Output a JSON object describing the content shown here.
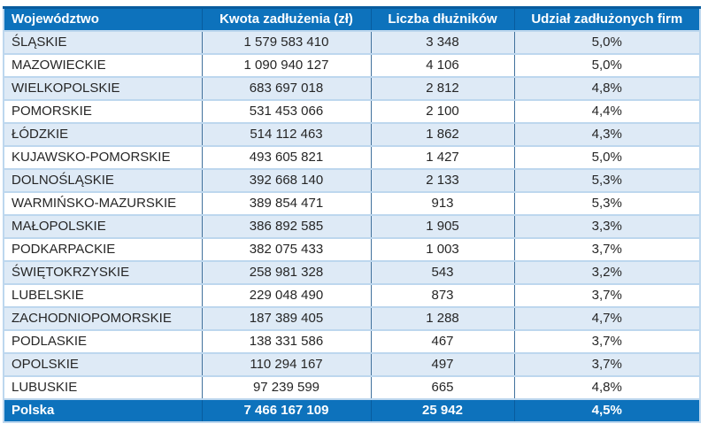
{
  "colors": {
    "header-bg": "#0d72bc",
    "header-top": "#085c9e",
    "stripe-bg": "#deeaf6",
    "row-bg": "#ffffff",
    "border-light": "#bdd7ee",
    "border-dark": "#41719c",
    "text-dark": "#262626",
    "text-light": "#ffffff"
  },
  "table": {
    "columns": [
      {
        "label": "Województwo"
      },
      {
        "label": "Kwota zadłużenia (zł)"
      },
      {
        "label": "Liczba dłużników"
      },
      {
        "label": "Udział zadłużonych firm"
      }
    ],
    "rows": [
      [
        "ŚLĄSKIE",
        "1 579 583 410",
        "3 348",
        "5,0%"
      ],
      [
        "MAZOWIECKIE",
        "1 090 940 127",
        "4 106",
        "5,0%"
      ],
      [
        "WIELKOPOLSKIE",
        "683 697 018",
        "2 812",
        "4,8%"
      ],
      [
        "POMORSKIE",
        "531 453 066",
        "2 100",
        "4,4%"
      ],
      [
        "ŁÓDZKIE",
        "514 112 463",
        "1 862",
        "4,3%"
      ],
      [
        "KUJAWSKO-POMORSKIE",
        "493 605 821",
        "1 427",
        "5,0%"
      ],
      [
        "DOLNOŚLĄSKIE",
        "392 668 140",
        "2 133",
        "5,3%"
      ],
      [
        "WARMIŃSKO-MAZURSKIE",
        "389 854 471",
        "913",
        "5,3%"
      ],
      [
        "MAŁOPOLSKIE",
        "386 892 585",
        "1 905",
        "3,3%"
      ],
      [
        "PODKARPACKIE",
        "382 075 433",
        "1 003",
        "3,7%"
      ],
      [
        "ŚWIĘTOKRZYSKIE",
        "258 981 328",
        "543",
        "3,2%"
      ],
      [
        "LUBELSKIE",
        "229 048 490",
        "873",
        "3,7%"
      ],
      [
        "ZACHODNIOPOMORSKIE",
        "187 389 405",
        "1 288",
        "4,7%"
      ],
      [
        "PODLASKIE",
        "138 331 586",
        "467",
        "3,7%"
      ],
      [
        "OPOLSKIE",
        "110 294 167",
        "497",
        "3,7%"
      ],
      [
        "LUBUSKIE",
        "97 239 599",
        "665",
        "4,8%"
      ]
    ],
    "footer": {
      "label": "Polska",
      "values": [
        "7 466 167 109",
        "25 942",
        "4,5%"
      ]
    }
  },
  "chart_data": {
    "type": "table",
    "title": "",
    "columns": [
      "Województwo",
      "Kwota zadłużenia (zł)",
      "Liczba dłużników",
      "Udział zadłużonych firm"
    ],
    "rows": [
      {
        "wojewodztwo": "ŚLĄSKIE",
        "kwota_zadluzenia_zl": 1579583410,
        "liczba_dluznikow": 3348,
        "udzial_zadluzonych_firm_pct": 5.0
      },
      {
        "wojewodztwo": "MAZOWIECKIE",
        "kwota_zadluzenia_zl": 1090940127,
        "liczba_dluznikow": 4106,
        "udzial_zadluzonych_firm_pct": 5.0
      },
      {
        "wojewodztwo": "WIELKOPOLSKIE",
        "kwota_zadluzenia_zl": 683697018,
        "liczba_dluznikow": 2812,
        "udzial_zadluzonych_firm_pct": 4.8
      },
      {
        "wojewodztwo": "POMORSKIE",
        "kwota_zadluzenia_zl": 531453066,
        "liczba_dluznikow": 2100,
        "udzial_zadluzonych_firm_pct": 4.4
      },
      {
        "wojewodztwo": "ŁÓDZKIE",
        "kwota_zadluzenia_zl": 514112463,
        "liczba_dluznikow": 1862,
        "udzial_zadluzonych_firm_pct": 4.3
      },
      {
        "wojewodztwo": "KUJAWSKO-POMORSKIE",
        "kwota_zadluzenia_zl": 493605821,
        "liczba_dluznikow": 1427,
        "udzial_zadluzonych_firm_pct": 5.0
      },
      {
        "wojewodztwo": "DOLNOŚLĄSKIE",
        "kwota_zadluzenia_zl": 392668140,
        "liczba_dluznikow": 2133,
        "udzial_zadluzonych_firm_pct": 5.3
      },
      {
        "wojewodztwo": "WARMIŃSKO-MAZURSKIE",
        "kwota_zadluzenia_zl": 389854471,
        "liczba_dluznikow": 913,
        "udzial_zadluzonych_firm_pct": 5.3
      },
      {
        "wojewodztwo": "MAŁOPOLSKIE",
        "kwota_zadluzenia_zl": 386892585,
        "liczba_dluznikow": 1905,
        "udzial_zadluzonych_firm_pct": 3.3
      },
      {
        "wojewodztwo": "PODKARPACKIE",
        "kwota_zadluzenia_zl": 382075433,
        "liczba_dluznikow": 1003,
        "udzial_zadluzonych_firm_pct": 3.7
      },
      {
        "wojewodztwo": "ŚWIĘTOKRZYSKIE",
        "kwota_zadluzenia_zl": 258981328,
        "liczba_dluznikow": 543,
        "udzial_zadluzonych_firm_pct": 3.2
      },
      {
        "wojewodztwo": "LUBELSKIE",
        "kwota_zadluzenia_zl": 229048490,
        "liczba_dluznikow": 873,
        "udzial_zadluzonych_firm_pct": 3.7
      },
      {
        "wojewodztwo": "ZACHODNIOPOMORSKIE",
        "kwota_zadluzenia_zl": 187389405,
        "liczba_dluznikow": 1288,
        "udzial_zadluzonych_firm_pct": 4.7
      },
      {
        "wojewodztwo": "PODLASKIE",
        "kwota_zadluzenia_zl": 138331586,
        "liczba_dluznikow": 467,
        "udzial_zadluzonych_firm_pct": 3.7
      },
      {
        "wojewodztwo": "OPOLSKIE",
        "kwota_zadluzenia_zl": 110294167,
        "liczba_dluznikow": 497,
        "udzial_zadluzonych_firm_pct": 3.7
      },
      {
        "wojewodztwo": "LUBUSKIE",
        "kwota_zadluzenia_zl": 97239599,
        "liczba_dluznikow": 665,
        "udzial_zadluzonych_firm_pct": 4.8
      }
    ],
    "total_row": {
      "wojewodztwo": "Polska",
      "kwota_zadluzenia_zl": 7466167109,
      "liczba_dluznikow": 25942,
      "udzial_zadluzonych_firm_pct": 4.5
    }
  }
}
